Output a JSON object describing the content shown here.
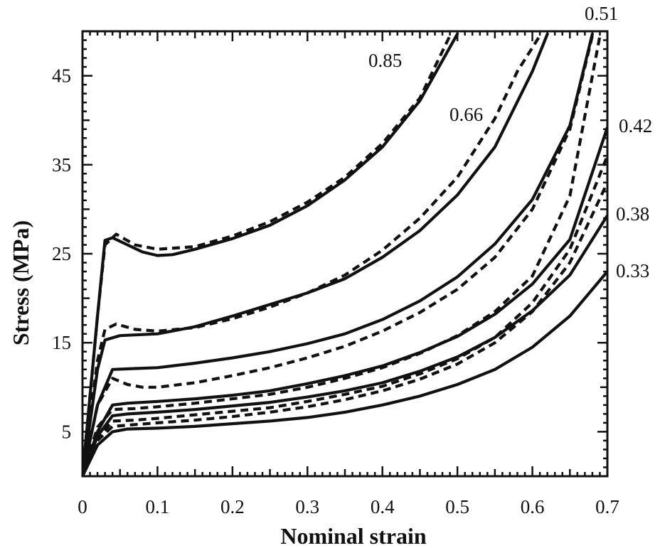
{
  "chart_data": {
    "type": "line",
    "xlabel": "Nominal strain",
    "ylabel": "Stress (MPa)",
    "xlim": [
      0,
      0.7
    ],
    "ylim": [
      0,
      50
    ],
    "xticks": [
      "0",
      "0.1",
      "0.2",
      "0.3",
      "0.4",
      "0.5",
      "0.6",
      "0.7"
    ],
    "yticks": [
      "5",
      "15",
      "25",
      "35",
      "45"
    ],
    "annotations": [
      "0.85",
      "0.66",
      "0.51",
      "0.42",
      "0.38",
      "0.33"
    ],
    "series": [
      {
        "label": "0.85",
        "style": "solid",
        "points": [
          [
            0,
            0
          ],
          [
            0.02,
            18
          ],
          [
            0.03,
            26.5
          ],
          [
            0.04,
            26.8
          ],
          [
            0.06,
            26
          ],
          [
            0.08,
            25.2
          ],
          [
            0.1,
            24.8
          ],
          [
            0.12,
            24.9
          ],
          [
            0.15,
            25.5
          ],
          [
            0.2,
            26.7
          ],
          [
            0.25,
            28.2
          ],
          [
            0.3,
            30.4
          ],
          [
            0.35,
            33.3
          ],
          [
            0.4,
            37
          ],
          [
            0.45,
            42.2
          ],
          [
            0.5,
            49.7
          ]
        ]
      },
      {
        "label": "0.85",
        "style": "dashed",
        "points": [
          [
            0,
            0
          ],
          [
            0.02,
            18
          ],
          [
            0.03,
            26
          ],
          [
            0.045,
            27.2
          ],
          [
            0.07,
            26
          ],
          [
            0.1,
            25.5
          ],
          [
            0.15,
            25.8
          ],
          [
            0.2,
            27
          ],
          [
            0.25,
            28.6
          ],
          [
            0.3,
            30.8
          ],
          [
            0.35,
            33.6
          ],
          [
            0.4,
            37.4
          ],
          [
            0.45,
            42.5
          ],
          [
            0.49,
            49.5
          ]
        ]
      },
      {
        "label": "0.66",
        "style": "solid",
        "points": [
          [
            0,
            0
          ],
          [
            0.02,
            12
          ],
          [
            0.03,
            15.3
          ],
          [
            0.05,
            15.8
          ],
          [
            0.1,
            16
          ],
          [
            0.15,
            16.8
          ],
          [
            0.2,
            18
          ],
          [
            0.25,
            19.3
          ],
          [
            0.3,
            20.6
          ],
          [
            0.35,
            22.2
          ],
          [
            0.4,
            24.6
          ],
          [
            0.45,
            27.6
          ],
          [
            0.5,
            31.6
          ],
          [
            0.55,
            37
          ],
          [
            0.6,
            45.5
          ],
          [
            0.62,
            49.7
          ]
        ]
      },
      {
        "label": "0.66",
        "style": "dashed",
        "points": [
          [
            0,
            0
          ],
          [
            0.02,
            13
          ],
          [
            0.03,
            16.5
          ],
          [
            0.045,
            17.1
          ],
          [
            0.07,
            16.5
          ],
          [
            0.1,
            16.3
          ],
          [
            0.15,
            16.7
          ],
          [
            0.2,
            17.7
          ],
          [
            0.25,
            19
          ],
          [
            0.3,
            20.6
          ],
          [
            0.35,
            22.6
          ],
          [
            0.4,
            25.4
          ],
          [
            0.45,
            29
          ],
          [
            0.5,
            33.6
          ],
          [
            0.55,
            40.2
          ],
          [
            0.58,
            45.5
          ],
          [
            0.61,
            49.5
          ]
        ]
      },
      {
        "label": "0.51",
        "style": "solid",
        "points": [
          [
            0,
            0
          ],
          [
            0.02,
            8
          ],
          [
            0.04,
            12
          ],
          [
            0.07,
            12.1
          ],
          [
            0.1,
            12.2
          ],
          [
            0.15,
            12.7
          ],
          [
            0.2,
            13.3
          ],
          [
            0.25,
            14
          ],
          [
            0.3,
            14.9
          ],
          [
            0.35,
            16
          ],
          [
            0.4,
            17.6
          ],
          [
            0.45,
            19.7
          ],
          [
            0.5,
            22.4
          ],
          [
            0.55,
            26.1
          ],
          [
            0.6,
            31.1
          ],
          [
            0.65,
            39.4
          ],
          [
            0.68,
            49.7
          ]
        ]
      },
      {
        "label": "0.51",
        "style": "dashed",
        "points": [
          [
            0,
            0
          ],
          [
            0.02,
            8
          ],
          [
            0.04,
            11
          ],
          [
            0.06,
            10.3
          ],
          [
            0.08,
            10
          ],
          [
            0.1,
            10
          ],
          [
            0.15,
            10.5
          ],
          [
            0.2,
            11.3
          ],
          [
            0.25,
            12.2
          ],
          [
            0.3,
            13.3
          ],
          [
            0.35,
            14.6
          ],
          [
            0.4,
            16.3
          ],
          [
            0.45,
            18.4
          ],
          [
            0.5,
            21
          ],
          [
            0.55,
            24.6
          ],
          [
            0.6,
            30
          ],
          [
            0.65,
            39
          ],
          [
            0.68,
            49.5
          ]
        ]
      },
      {
        "label": "0.42",
        "style": "solid",
        "points": [
          [
            0,
            0
          ],
          [
            0.02,
            5
          ],
          [
            0.04,
            8
          ],
          [
            0.06,
            8.2
          ],
          [
            0.1,
            8.4
          ],
          [
            0.15,
            8.7
          ],
          [
            0.2,
            9.1
          ],
          [
            0.25,
            9.6
          ],
          [
            0.3,
            10.4
          ],
          [
            0.35,
            11.3
          ],
          [
            0.4,
            12.4
          ],
          [
            0.45,
            13.9
          ],
          [
            0.5,
            15.7
          ],
          [
            0.55,
            18.2
          ],
          [
            0.6,
            21.6
          ],
          [
            0.65,
            26.6
          ],
          [
            0.7,
            39.2
          ]
        ]
      },
      {
        "label": "0.42",
        "style": "dashed",
        "points": [
          [
            0,
            0
          ],
          [
            0.02,
            5.5
          ],
          [
            0.04,
            7.5
          ],
          [
            0.07,
            7.6
          ],
          [
            0.1,
            7.8
          ],
          [
            0.15,
            8.2
          ],
          [
            0.2,
            8.7
          ],
          [
            0.25,
            9.2
          ],
          [
            0.3,
            10
          ],
          [
            0.35,
            11
          ],
          [
            0.4,
            12.2
          ],
          [
            0.45,
            13.8
          ],
          [
            0.5,
            15.8
          ],
          [
            0.55,
            18.5
          ],
          [
            0.6,
            22.5
          ],
          [
            0.65,
            31.5
          ],
          [
            0.69,
            49.5
          ]
        ]
      },
      {
        "label": "0.38",
        "style": "solid",
        "points": [
          [
            0,
            0
          ],
          [
            0.02,
            4.5
          ],
          [
            0.04,
            6.8
          ],
          [
            0.06,
            7
          ],
          [
            0.1,
            7.2
          ],
          [
            0.15,
            7.5
          ],
          [
            0.2,
            7.9
          ],
          [
            0.25,
            8.3
          ],
          [
            0.3,
            8.9
          ],
          [
            0.35,
            9.6
          ],
          [
            0.4,
            10.5
          ],
          [
            0.45,
            11.8
          ],
          [
            0.5,
            13.4
          ],
          [
            0.55,
            15.6
          ],
          [
            0.6,
            18.6
          ],
          [
            0.65,
            22.6
          ],
          [
            0.7,
            29.3
          ]
        ]
      },
      {
        "label": "0.38",
        "style": "dashed",
        "points": [
          [
            0,
            0
          ],
          [
            0.02,
            4.2
          ],
          [
            0.04,
            6.2
          ],
          [
            0.07,
            6.3
          ],
          [
            0.1,
            6.5
          ],
          [
            0.15,
            6.9
          ],
          [
            0.2,
            7.3
          ],
          [
            0.25,
            7.7
          ],
          [
            0.3,
            8.4
          ],
          [
            0.35,
            9.2
          ],
          [
            0.4,
            10.1
          ],
          [
            0.45,
            11.5
          ],
          [
            0.5,
            13.2
          ],
          [
            0.55,
            15.6
          ],
          [
            0.6,
            19.5
          ],
          [
            0.65,
            25.5
          ],
          [
            0.7,
            36
          ]
        ]
      },
      {
        "label": "0.33",
        "style": "solid",
        "points": [
          [
            0,
            0
          ],
          [
            0.02,
            3.5
          ],
          [
            0.04,
            5
          ],
          [
            0.06,
            5.3
          ],
          [
            0.1,
            5.4
          ],
          [
            0.15,
            5.6
          ],
          [
            0.2,
            5.9
          ],
          [
            0.25,
            6.2
          ],
          [
            0.3,
            6.6
          ],
          [
            0.35,
            7.2
          ],
          [
            0.4,
            8
          ],
          [
            0.45,
            9
          ],
          [
            0.5,
            10.3
          ],
          [
            0.55,
            12
          ],
          [
            0.6,
            14.5
          ],
          [
            0.65,
            18
          ],
          [
            0.7,
            23
          ]
        ]
      },
      {
        "label": "0.33",
        "style": "dashed",
        "points": [
          [
            0,
            0
          ],
          [
            0.02,
            4
          ],
          [
            0.04,
            5.6
          ],
          [
            0.07,
            5.8
          ],
          [
            0.1,
            6
          ],
          [
            0.15,
            6.3
          ],
          [
            0.2,
            6.7
          ],
          [
            0.25,
            7.2
          ],
          [
            0.3,
            7.8
          ],
          [
            0.35,
            8.6
          ],
          [
            0.4,
            9.6
          ],
          [
            0.45,
            10.9
          ],
          [
            0.5,
            12.6
          ],
          [
            0.55,
            15
          ],
          [
            0.6,
            18.5
          ],
          [
            0.65,
            24
          ],
          [
            0.7,
            33
          ]
        ]
      }
    ]
  }
}
